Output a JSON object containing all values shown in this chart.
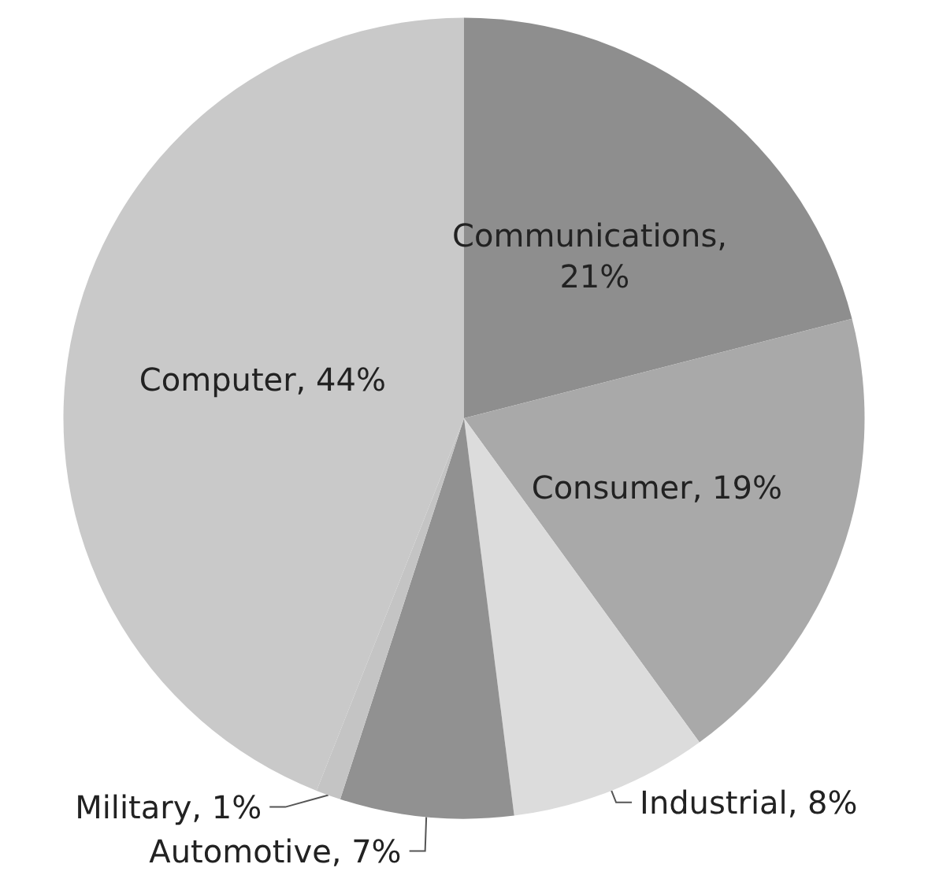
{
  "chart_data": {
    "type": "pie",
    "categories": [
      "Communications, 21%",
      "Consumer, 19%",
      "Industrial, 8%",
      "Automotive, 7%",
      "Military, 1%",
      "Computer, 44%"
    ],
    "values": [
      21,
      19,
      8,
      7,
      1,
      44
    ],
    "colors": [
      "#8e8e8e",
      "#a9a9a9",
      "#dcdcdc",
      "#919191",
      "#c4c4c4",
      "#c9c9c9"
    ],
    "legend": false
  }
}
